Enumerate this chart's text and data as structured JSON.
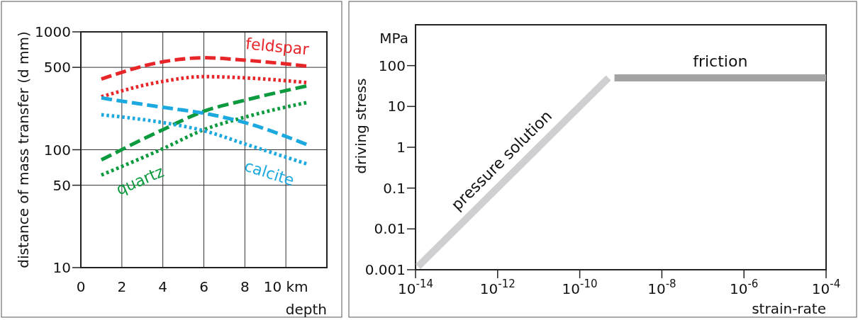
{
  "chart_data": [
    {
      "type": "line",
      "xlabel": "depth",
      "ylabel": "distance of mass transfer (d mm)",
      "xlim": [
        0,
        12
      ],
      "ylim": [
        10,
        1000
      ],
      "log": "y",
      "grid": true,
      "xticks": [
        0,
        2,
        4,
        6,
        8,
        {
          "value": 10,
          "label": "10 km"
        }
      ],
      "yticks": [
        10,
        50,
        100,
        500,
        1000
      ],
      "x": [
        1,
        4,
        6,
        8,
        11
      ],
      "series": [
        {
          "name": "feldspar",
          "color": "#e8262a",
          "line_style": "dashed",
          "values": [
            398,
            557,
            603,
            575,
            513
          ]
        },
        {
          "color": "#e8262a",
          "line_style": "dotted",
          "values": [
            282,
            380,
            417,
            407,
            372
          ]
        },
        {
          "name": "quartz",
          "color": "#0c9a3e",
          "line_style": "dashed",
          "values": [
            82,
            148,
            212,
            263,
            347
          ]
        },
        {
          "color": "#0c9a3e",
          "line_style": "dotted",
          "values": [
            61,
            102,
            148,
            189,
            251
          ]
        },
        {
          "name": "calcite",
          "color": "#1ba9df",
          "line_style": "dashed",
          "values": [
            275,
            229,
            204,
            170,
            111
          ]
        },
        {
          "color": "#1ba9df",
          "line_style": "dotted",
          "values": [
            198,
            170,
            145,
            112,
            76
          ]
        }
      ]
    },
    {
      "type": "line",
      "xlabel": "strain-rate",
      "ylabel": "driving stress",
      "log": "xy",
      "xlim": [
        1e-14,
        0.0001
      ],
      "ylim": [
        0.001,
        1000
      ],
      "xticks": [
        {
          "value": 1e-14,
          "label": "10$^{-14}$"
        },
        {
          "value": 1e-12,
          "label": "10$^{-12}$"
        },
        {
          "value": 1e-10,
          "label": "10$^{-10}$"
        },
        {
          "value": 1e-08,
          "label": "10$^{-8}$"
        },
        {
          "value": 1e-06,
          "label": "10$^{-6}$"
        },
        {
          "value": 0.0001,
          "label": "10$^{-4}$"
        }
      ],
      "yticks": [
        0.001,
        0.01,
        0.1,
        1,
        10,
        100
      ],
      "series": [
        {
          "name": "pressure solution",
          "color": "#cfcfd2",
          "x": [
            1.15e-14,
            5e-10
          ],
          "values": [
            0.0012,
            50
          ]
        },
        {
          "name": "friction",
          "color": "#a3a3a3",
          "x": [
            7e-10,
            0.0001
          ],
          "values": [
            50,
            50
          ]
        }
      ],
      "annotations": [
        "MPa"
      ]
    }
  ]
}
